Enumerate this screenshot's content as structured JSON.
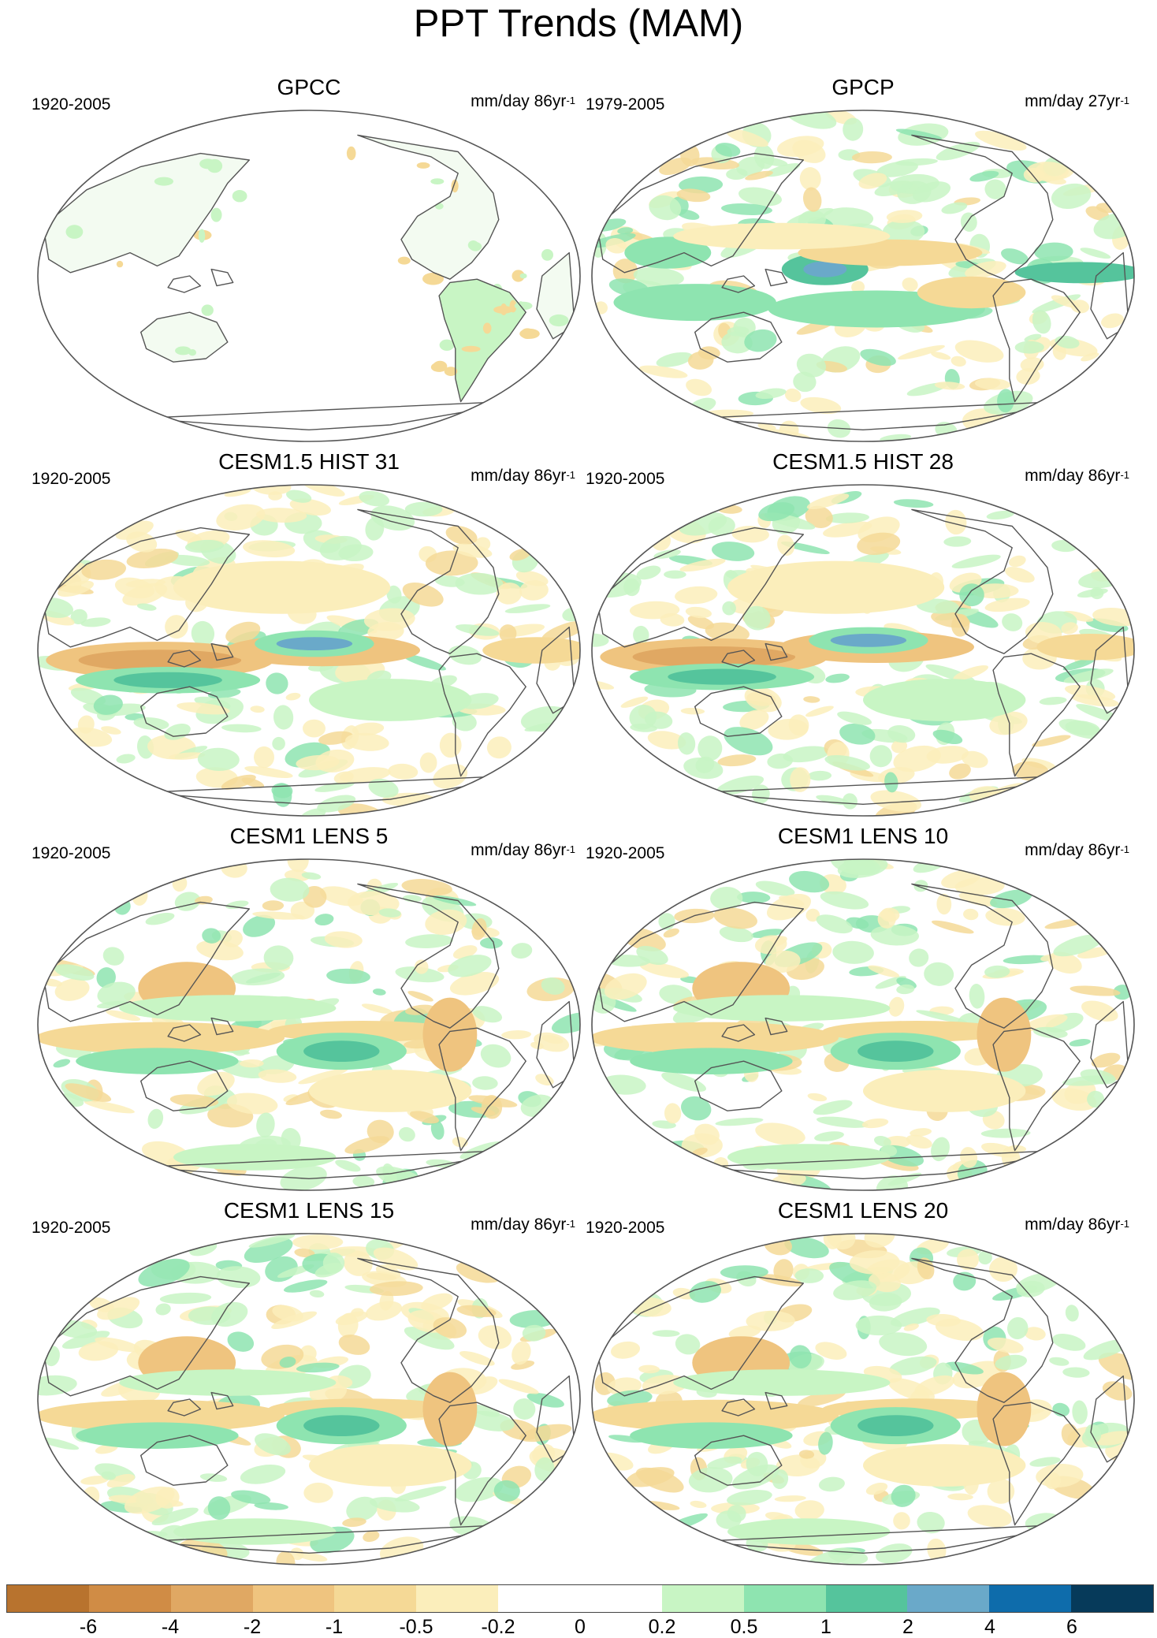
{
  "figure": {
    "title": "PPT Trends (MAM)"
  },
  "panels": [
    {
      "title": "GPCC",
      "period": "1920-2005",
      "units": "mm/day 86yr",
      "units_exp": "-1",
      "coverage": "land"
    },
    {
      "title": "GPCP",
      "period": "1979-2005",
      "units": "mm/day 27yr",
      "units_exp": "-1",
      "coverage": "global"
    },
    {
      "title": "CESM1.5 HIST 31",
      "period": "1920-2005",
      "units": "mm/day 86yr",
      "units_exp": "-1",
      "coverage": "global"
    },
    {
      "title": "CESM1.5 HIST 28",
      "period": "1920-2005",
      "units": "mm/day 86yr",
      "units_exp": "-1",
      "coverage": "global"
    },
    {
      "title": "CESM1 LENS 5",
      "period": "1920-2005",
      "units": "mm/day 86yr",
      "units_exp": "-1",
      "coverage": "global"
    },
    {
      "title": "CESM1 LENS 10",
      "period": "1920-2005",
      "units": "mm/day 86yr",
      "units_exp": "-1",
      "coverage": "global"
    },
    {
      "title": "CESM1 LENS 15",
      "period": "1920-2005",
      "units": "mm/day 86yr",
      "units_exp": "-1",
      "coverage": "global"
    },
    {
      "title": "CESM1 LENS 20",
      "period": "1920-2005",
      "units": "mm/day 86yr",
      "units_exp": "-1",
      "coverage": "global"
    }
  ],
  "colorbar": {
    "labels": [
      "-6",
      "-4",
      "-2",
      "-1",
      "-0.5",
      "-0.2",
      "0",
      "0.2",
      "0.5",
      "1",
      "2",
      "4",
      "6"
    ],
    "colors": [
      "#b8732e",
      "#d08c45",
      "#e0a863",
      "#efc47f",
      "#f5d996",
      "#fbeebb",
      "#ffffff",
      "#ffffff",
      "#c8f5c4",
      "#8ee4b0",
      "#55c49c",
      "#6aa9c9",
      "#0e6cab",
      "#063a5a"
    ]
  }
}
